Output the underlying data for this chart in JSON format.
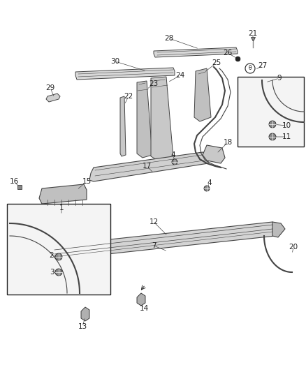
{
  "bg_color": "#ffffff",
  "line_color": "#444444",
  "label_color": "#222222",
  "gray": "#888888",
  "dark": "#222222",
  "light_gray": "#cccccc",
  "figsize": [
    4.38,
    5.33
  ],
  "dpi": 100
}
